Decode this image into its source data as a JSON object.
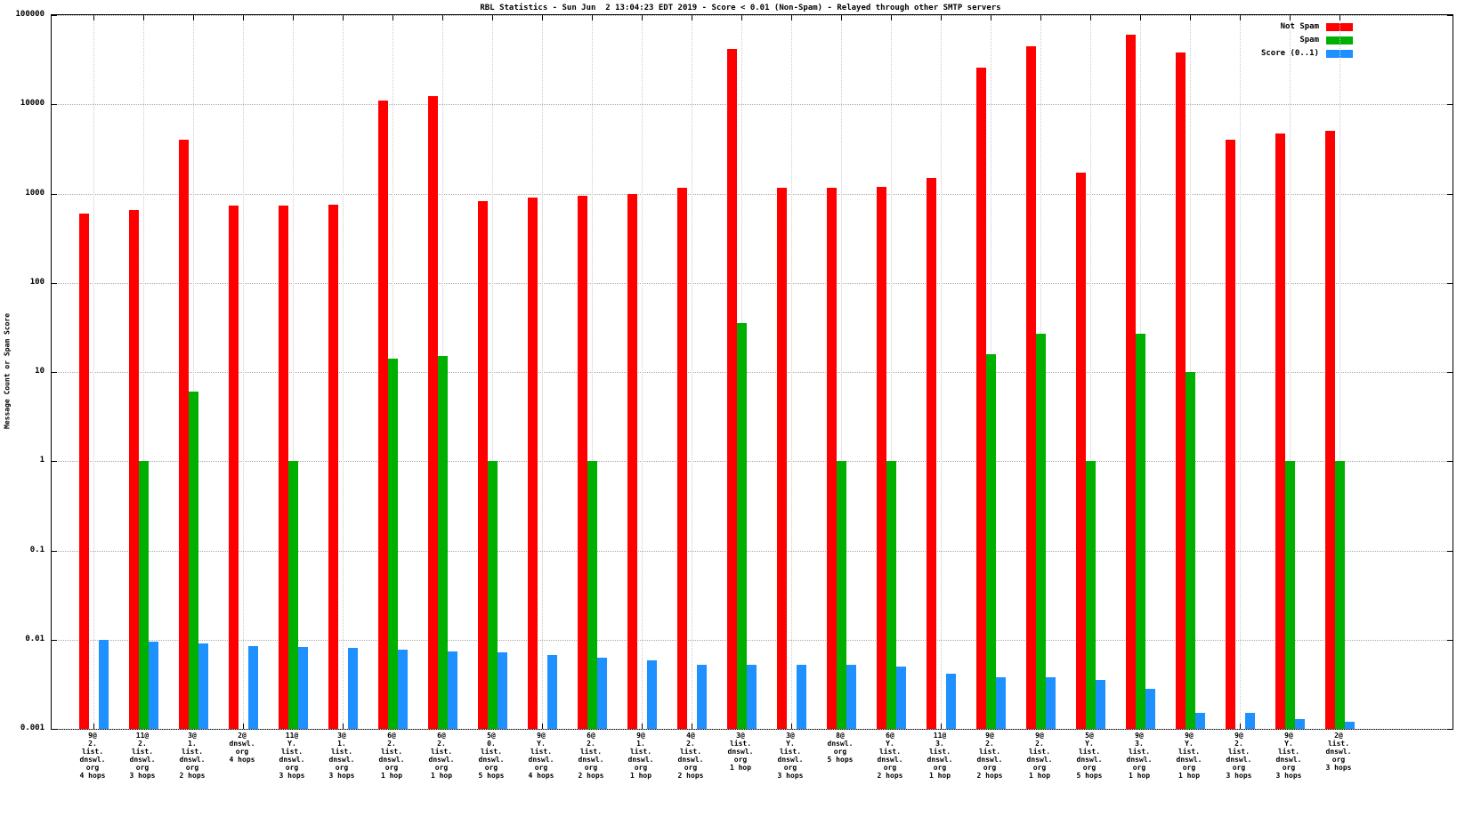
{
  "title": "RBL Statistics - Sun Jun  2 13:04:23 EDT 2019 - Score < 0.01 (Non-Spam) - Relayed through other SMTP servers",
  "ylabel": "Message Count or Spam Score",
  "legend": [
    {
      "label": "Not Spam",
      "color": "#ff0000"
    },
    {
      "label": "Spam",
      "color": "#00b000"
    },
    {
      "label": "Score (0..1)",
      "color": "#1e90ff"
    }
  ],
  "chart_data": {
    "type": "bar",
    "scale": "log",
    "title": "RBL Statistics - Sun Jun  2 13:04:23 EDT 2019 - Score < 0.01 (Non-Spam) - Relayed through other SMTP servers",
    "xlabel": "",
    "ylabel": "Message Count or Spam Score",
    "ylim": [
      0.001,
      100000
    ],
    "yticks": [
      "100000",
      "10000",
      "1000",
      "100",
      "10",
      "1",
      "0.1",
      "0.01",
      "0.001"
    ],
    "grid": true,
    "legend_position": "top-right",
    "categories": [
      "9@\n2.\nlist.\ndnswl.\norg\n4 hops",
      "11@\n2.\nlist.\ndnswl.\norg\n3 hops",
      "3@\n1.\nlist.\ndnswl.\norg\n2 hops",
      "2@\ndnswl.\norg\n4 hops",
      "11@\nY.\nlist.\ndnswl.\norg\n3 hops",
      "3@\n1.\nlist.\ndnswl.\norg\n3 hops",
      "6@\n2.\nlist.\ndnswl.\norg\n1 hop",
      "6@\n2.\nlist.\ndnswl.\norg\n1 hop",
      "5@\n0.\nlist.\ndnswl.\norg\n5 hops",
      "9@\nY.\nlist.\ndnswl.\norg\n4 hops",
      "6@\n2.\nlist.\ndnswl.\norg\n2 hops",
      "9@\n1.\nlist.\ndnswl.\norg\n1 hop",
      "4@\n2.\nlist.\ndnswl.\norg\n2 hops",
      "3@\nlist.\ndnswl.\norg\n1 hop",
      "3@\nY.\nlist.\ndnswl.\norg\n3 hops",
      "8@\ndnswl.\norg\n5 hops",
      "6@\nY.\nlist.\ndnswl.\norg\n2 hops",
      "11@\n3.\nlist.\ndnswl.\norg\n1 hop",
      "9@\n2.\nlist.\ndnswl.\norg\n2 hops",
      "9@\n2.\nlist.\ndnswl.\norg\n1 hop",
      "5@\nY.\nlist.\ndnswl.\norg\n5 hops",
      "9@\n3.\nlist.\ndnswl.\norg\n1 hop",
      "9@\nY.\nlist.\ndnswl.\norg\n1 hop",
      "9@\n2.\nlist.\ndnswl.\norg\n3 hops",
      "9@\nY.\nlist.\ndnswl.\norg\n3 hops",
      "2@\nlist.\ndnswl.\norg\n3 hops"
    ],
    "series": [
      {
        "name": "Not Spam",
        "key": "not-spam",
        "color": "#ff0000",
        "values": [
          600,
          650,
          4000,
          730,
          740,
          750,
          11000,
          12500,
          830,
          900,
          950,
          1000,
          1150,
          42000,
          1150,
          1150,
          1200,
          1500,
          26000,
          45000,
          1700,
          60000,
          38000,
          4000,
          4700,
          5100
        ]
      },
      {
        "name": "Spam",
        "key": "spam",
        "color": "#00b000",
        "values": [
          0,
          1,
          6,
          0,
          1,
          0,
          14,
          15,
          1,
          0,
          1,
          0,
          0,
          35,
          0,
          1,
          1,
          0,
          16,
          27,
          1,
          27,
          10,
          0,
          1,
          1
        ]
      },
      {
        "name": "Score (0..1)",
        "key": "score",
        "color": "#1e90ff",
        "values": [
          0.01,
          0.0095,
          0.009,
          0.0085,
          0.0082,
          0.008,
          0.0078,
          0.0073,
          0.0072,
          0.0068,
          0.0063,
          0.0058,
          0.0052,
          0.0052,
          0.0052,
          0.0052,
          0.005,
          0.0042,
          0.0038,
          0.0038,
          0.0035,
          0.0028,
          0.0015,
          0.0015,
          0.0013,
          0.0012
        ]
      }
    ]
  }
}
